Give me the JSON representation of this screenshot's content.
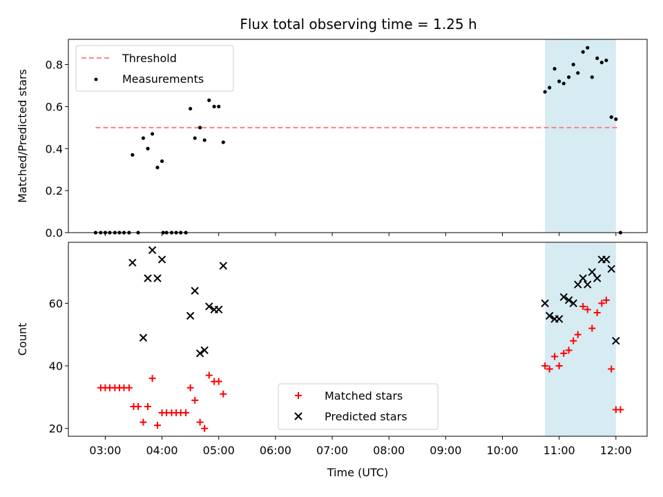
{
  "chart_data": {
    "title": "Flux total observing time = 1.25 h",
    "type": "scatter",
    "x_axis": {
      "label": "Time (UTC)",
      "unit": "hours (UTC)",
      "range": [
        2.35,
        12.55
      ],
      "ticks": [
        {
          "value": 3,
          "label": "03:00"
        },
        {
          "value": 4,
          "label": "04:00"
        },
        {
          "value": 5,
          "label": "05:00"
        },
        {
          "value": 6,
          "label": "06:00"
        },
        {
          "value": 7,
          "label": "07:00"
        },
        {
          "value": 8,
          "label": "08:00"
        },
        {
          "value": 9,
          "label": "09:00"
        },
        {
          "value": 10,
          "label": "10:00"
        },
        {
          "value": 11,
          "label": "11:00"
        },
        {
          "value": 12,
          "label": "12:00"
        }
      ]
    },
    "shaded_region": {
      "x_start": 10.75,
      "x_end": 12.0,
      "color": "#add8e6"
    },
    "panels": [
      {
        "id": "top",
        "ylabel": "Matched/Predicted stars",
        "ylim": [
          0,
          0.92
        ],
        "yticks": [
          {
            "value": 0,
            "label": "0.0"
          },
          {
            "value": 0.2,
            "label": "0.2"
          },
          {
            "value": 0.4,
            "label": "0.4"
          },
          {
            "value": 0.6,
            "label": "0.6"
          },
          {
            "value": 0.8,
            "label": "0.8"
          }
        ],
        "legend_position": "upper-left",
        "series": [
          {
            "name": "Threshold",
            "type": "line",
            "style": "dashed",
            "color": "#ff7f7f",
            "x": [
              2.83,
              12.02
            ],
            "y": [
              0.5,
              0.5
            ]
          },
          {
            "name": "Measurements",
            "type": "scatter",
            "marker": "dot",
            "color": "#000000",
            "x": [
              2.83,
              2.92,
              3.0,
              3.08,
              3.17,
              3.25,
              3.33,
              3.42,
              3.48,
              3.58,
              3.67,
              3.75,
              3.83,
              3.92,
              4.0,
              4.02,
              4.08,
              4.17,
              4.25,
              4.33,
              4.42,
              4.5,
              4.58,
              4.67,
              4.75,
              4.83,
              4.92,
              5.0,
              5.08,
              10.75,
              10.83,
              10.92,
              11.0,
              11.08,
              11.17,
              11.25,
              11.33,
              11.42,
              11.5,
              11.58,
              11.67,
              11.75,
              11.83,
              11.92,
              12.0,
              12.08
            ],
            "y": [
              0,
              0,
              0,
              0,
              0,
              0,
              0,
              0,
              0.37,
              0,
              0.45,
              0.4,
              0.47,
              0.31,
              0.34,
              0,
              0,
              0,
              0,
              0,
              0,
              0.59,
              0.45,
              0.5,
              0.44,
              0.63,
              0.6,
              0.6,
              0.43,
              0.67,
              0.69,
              0.78,
              0.72,
              0.71,
              0.74,
              0.8,
              0.76,
              0.86,
              0.88,
              0.74,
              0.83,
              0.81,
              0.82,
              0.55,
              0.54,
              0
            ]
          }
        ]
      },
      {
        "id": "bottom",
        "ylabel": "Count",
        "ylim": [
          17.5,
          79.5
        ],
        "yticks": [
          {
            "value": 20,
            "label": "20"
          },
          {
            "value": 40,
            "label": "40"
          },
          {
            "value": 60,
            "label": "60"
          }
        ],
        "legend_position": "lower-center",
        "series": [
          {
            "name": "Matched stars",
            "type": "scatter",
            "marker": "plus",
            "color": "#ff0000",
            "x": [
              2.92,
              3.0,
              3.08,
              3.17,
              3.25,
              3.33,
              3.42,
              3.5,
              3.58,
              3.67,
              3.75,
              3.83,
              3.92,
              4.0,
              4.08,
              4.17,
              4.25,
              4.33,
              4.42,
              4.5,
              4.58,
              4.67,
              4.75,
              4.83,
              4.92,
              5.0,
              5.08,
              10.75,
              10.83,
              10.92,
              11.0,
              11.08,
              11.17,
              11.25,
              11.33,
              11.42,
              11.5,
              11.58,
              11.67,
              11.75,
              11.83,
              11.92,
              12.0,
              12.08
            ],
            "y": [
              33,
              33,
              33,
              33,
              33,
              33,
              33,
              27,
              27,
              22,
              27,
              36,
              21,
              25,
              25,
              25,
              25,
              25,
              25,
              33,
              29,
              22,
              20,
              37,
              35,
              35,
              31,
              40,
              39,
              43,
              40,
              44,
              45,
              48,
              50,
              59,
              58,
              52,
              57,
              60,
              61,
              39,
              26,
              26
            ]
          },
          {
            "name": "Predicted stars",
            "type": "scatter",
            "marker": "x",
            "color": "#000000",
            "x": [
              3.48,
              3.67,
              3.75,
              3.83,
              3.92,
              4.0,
              4.5,
              4.58,
              4.67,
              4.75,
              4.83,
              4.92,
              5.0,
              5.08,
              10.75,
              10.83,
              10.92,
              11.0,
              11.08,
              11.17,
              11.25,
              11.33,
              11.42,
              11.5,
              11.58,
              11.67,
              11.75,
              11.83,
              11.92,
              12.0
            ],
            "y": [
              73,
              49,
              68,
              77,
              68,
              74,
              56,
              64,
              44,
              45,
              59,
              58,
              58,
              72,
              60,
              56,
              55,
              55,
              62,
              61,
              60,
              66,
              68,
              66,
              70,
              68,
              74,
              74,
              71,
              48
            ]
          }
        ]
      }
    ]
  }
}
